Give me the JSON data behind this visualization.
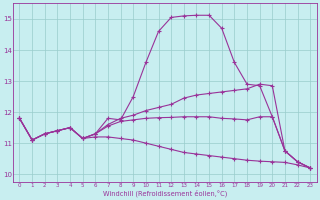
{
  "xlabel": "Windchill (Refroidissement éolien,°C)",
  "bg_color": "#c8eef0",
  "line_color": "#993399",
  "grid_color": "#99cccc",
  "x_ticks": [
    0,
    1,
    2,
    3,
    4,
    5,
    6,
    7,
    8,
    9,
    10,
    11,
    12,
    13,
    14,
    15,
    16,
    17,
    18,
    19,
    20,
    21,
    22,
    23
  ],
  "y_ticks": [
    10,
    11,
    12,
    13,
    14,
    15
  ],
  "ylim": [
    9.75,
    15.5
  ],
  "xlim": [
    -0.5,
    23.5
  ],
  "lines": [
    [
      11.8,
      11.1,
      11.3,
      11.4,
      11.5,
      11.15,
      11.3,
      11.8,
      11.75,
      12.5,
      13.6,
      14.6,
      15.05,
      15.1,
      15.12,
      15.12,
      14.7,
      13.6,
      12.9,
      12.85,
      11.85,
      10.75,
      10.4,
      10.2
    ],
    [
      11.8,
      11.1,
      11.3,
      11.4,
      11.5,
      11.15,
      11.3,
      11.6,
      11.8,
      11.9,
      12.05,
      12.15,
      12.25,
      12.45,
      12.55,
      12.6,
      12.65,
      12.7,
      12.75,
      12.9,
      12.85,
      10.75,
      10.4,
      10.2
    ],
    [
      11.8,
      11.1,
      11.3,
      11.4,
      11.5,
      11.15,
      11.3,
      11.55,
      11.7,
      11.75,
      11.8,
      11.82,
      11.83,
      11.85,
      11.85,
      11.85,
      11.8,
      11.78,
      11.75,
      11.85,
      11.85,
      10.75,
      10.4,
      10.2
    ],
    [
      11.8,
      11.1,
      11.3,
      11.4,
      11.5,
      11.15,
      11.2,
      11.2,
      11.15,
      11.1,
      11.0,
      10.9,
      10.8,
      10.7,
      10.65,
      10.6,
      10.55,
      10.5,
      10.45,
      10.42,
      10.4,
      10.38,
      10.3,
      10.2
    ]
  ]
}
